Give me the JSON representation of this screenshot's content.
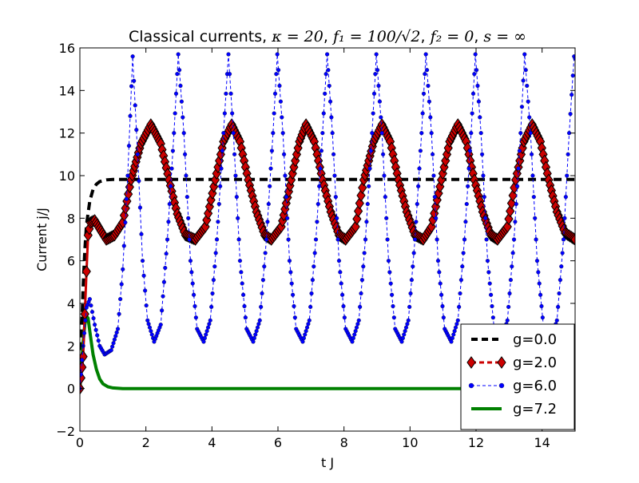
{
  "chart_data": {
    "type": "line",
    "title": {
      "prefix": "Classical currents, ",
      "kappa": "κ = 20",
      "f1": "f₁ = 100/√2",
      "f2": "f₂ = 0",
      "s": "s = ∞",
      "sep": ", "
    },
    "xlabel": "t J",
    "ylabel": "Current j/J",
    "xlim": [
      0,
      15
    ],
    "ylim": [
      -2,
      16
    ],
    "xticks": [
      0,
      2,
      4,
      6,
      8,
      10,
      12,
      14
    ],
    "yticks": [
      -2,
      0,
      2,
      4,
      6,
      8,
      10,
      12,
      14,
      16
    ],
    "grid": false,
    "legend_position": "lower-right",
    "series": [
      {
        "name": "g=0.0",
        "color": "#000000",
        "style": "dashed",
        "points": [
          [
            0,
            0
          ],
          [
            0.05,
            2.6
          ],
          [
            0.1,
            4.8
          ],
          [
            0.15,
            6.5
          ],
          [
            0.2,
            7.7
          ],
          [
            0.3,
            8.8
          ],
          [
            0.4,
            9.35
          ],
          [
            0.5,
            9.6
          ],
          [
            0.6,
            9.72
          ],
          [
            0.8,
            9.8
          ],
          [
            1.0,
            9.82
          ],
          [
            15,
            9.82
          ]
        ]
      },
      {
        "name": "g=2.0",
        "color": "#cc0000",
        "style": "diamonds",
        "points": [
          [
            0,
            0
          ],
          [
            0.1,
            1.5
          ],
          [
            0.15,
            3.5
          ],
          [
            0.2,
            5.5
          ],
          [
            0.25,
            7.2
          ],
          [
            0.32,
            7.8
          ],
          [
            0.45,
            7.9
          ],
          [
            0.6,
            7.5
          ],
          [
            0.8,
            7.0
          ],
          [
            1.05,
            7.2
          ],
          [
            1.3,
            7.8
          ],
          [
            1.55,
            9.8
          ],
          [
            1.85,
            11.5
          ],
          [
            2.15,
            12.4
          ],
          [
            2.45,
            11.5
          ],
          [
            2.7,
            9.8
          ],
          [
            2.95,
            8.2
          ],
          [
            3.2,
            7.2
          ],
          [
            3.5,
            7.0
          ],
          [
            3.8,
            7.6
          ],
          [
            4.1,
            9.8
          ],
          [
            4.35,
            11.6
          ],
          [
            4.6,
            12.4
          ],
          [
            4.85,
            11.6
          ],
          [
            5.1,
            9.8
          ],
          [
            5.35,
            8.3
          ],
          [
            5.6,
            7.2
          ],
          [
            5.8,
            7.0
          ],
          [
            6.1,
            7.6
          ],
          [
            6.4,
            9.8
          ],
          [
            6.65,
            11.6
          ],
          [
            6.85,
            12.4
          ],
          [
            7.1,
            11.6
          ],
          [
            7.35,
            9.8
          ],
          [
            7.6,
            8.3
          ],
          [
            7.85,
            7.2
          ],
          [
            8.05,
            7.0
          ],
          [
            8.35,
            7.6
          ],
          [
            8.6,
            9.8
          ],
          [
            8.9,
            11.6
          ],
          [
            9.15,
            12.4
          ],
          [
            9.4,
            11.6
          ],
          [
            9.65,
            9.8
          ],
          [
            9.9,
            8.3
          ],
          [
            10.15,
            7.2
          ],
          [
            10.4,
            7.0
          ],
          [
            10.65,
            7.6
          ],
          [
            10.95,
            9.8
          ],
          [
            11.2,
            11.6
          ],
          [
            11.45,
            12.4
          ],
          [
            11.7,
            11.6
          ],
          [
            11.95,
            9.8
          ],
          [
            12.2,
            8.3
          ],
          [
            12.45,
            7.2
          ],
          [
            12.65,
            7.0
          ],
          [
            12.95,
            7.6
          ],
          [
            13.2,
            9.8
          ],
          [
            13.45,
            11.6
          ],
          [
            13.7,
            12.4
          ],
          [
            13.95,
            11.6
          ],
          [
            14.2,
            9.8
          ],
          [
            14.45,
            8.3
          ],
          [
            14.7,
            7.3
          ],
          [
            15,
            7.0
          ]
        ]
      },
      {
        "name": "g=6.0",
        "color": "#0000ff",
        "style": "dots",
        "points": [
          [
            0,
            0
          ],
          [
            0.1,
            2.0
          ],
          [
            0.2,
            3.8
          ],
          [
            0.3,
            4.2
          ],
          [
            0.45,
            3.0
          ],
          [
            0.6,
            2.0
          ],
          [
            0.75,
            1.6
          ],
          [
            0.95,
            1.8
          ],
          [
            1.15,
            2.8
          ],
          [
            1.3,
            5.6
          ],
          [
            1.45,
            10.0
          ],
          [
            1.6,
            15.6
          ],
          [
            1.75,
            11.0
          ],
          [
            1.9,
            6.0
          ],
          [
            2.05,
            3.2
          ],
          [
            2.25,
            2.2
          ],
          [
            2.45,
            3.0
          ],
          [
            2.65,
            7.0
          ],
          [
            2.85,
            12.0
          ],
          [
            2.98,
            15.7
          ],
          [
            3.15,
            12.0
          ],
          [
            3.35,
            6.0
          ],
          [
            3.55,
            2.8
          ],
          [
            3.75,
            2.2
          ],
          [
            3.95,
            3.2
          ],
          [
            4.15,
            7.0
          ],
          [
            4.35,
            12.0
          ],
          [
            4.5,
            15.7
          ],
          [
            4.65,
            12.0
          ],
          [
            4.85,
            6.0
          ],
          [
            5.05,
            2.8
          ],
          [
            5.25,
            2.2
          ],
          [
            5.45,
            3.2
          ],
          [
            5.65,
            7.0
          ],
          [
            5.85,
            12.0
          ],
          [
            5.98,
            15.7
          ],
          [
            6.15,
            12.0
          ],
          [
            6.35,
            6.0
          ],
          [
            6.55,
            2.8
          ],
          [
            6.75,
            2.2
          ],
          [
            6.95,
            3.2
          ],
          [
            7.15,
            7.0
          ],
          [
            7.35,
            12.0
          ],
          [
            7.49,
            15.7
          ],
          [
            7.65,
            12.0
          ],
          [
            7.85,
            6.0
          ],
          [
            8.05,
            2.8
          ],
          [
            8.25,
            2.2
          ],
          [
            8.45,
            3.2
          ],
          [
            8.65,
            7.0
          ],
          [
            8.85,
            12.0
          ],
          [
            8.98,
            15.7
          ],
          [
            9.15,
            12.0
          ],
          [
            9.35,
            6.0
          ],
          [
            9.55,
            2.8
          ],
          [
            9.75,
            2.2
          ],
          [
            9.95,
            3.2
          ],
          [
            10.15,
            7.0
          ],
          [
            10.35,
            12.0
          ],
          [
            10.48,
            15.7
          ],
          [
            10.65,
            12.0
          ],
          [
            10.85,
            6.0
          ],
          [
            11.05,
            2.8
          ],
          [
            11.25,
            2.2
          ],
          [
            11.45,
            3.2
          ],
          [
            11.65,
            7.0
          ],
          [
            11.85,
            12.0
          ],
          [
            11.98,
            15.7
          ],
          [
            12.15,
            12.0
          ],
          [
            12.35,
            6.0
          ],
          [
            12.55,
            2.8
          ],
          [
            12.75,
            2.2
          ],
          [
            12.95,
            3.2
          ],
          [
            13.15,
            7.0
          ],
          [
            13.35,
            12.0
          ],
          [
            13.47,
            15.7
          ],
          [
            13.65,
            12.0
          ],
          [
            13.85,
            6.0
          ],
          [
            14.05,
            2.8
          ],
          [
            14.25,
            2.2
          ],
          [
            14.45,
            3.2
          ],
          [
            14.65,
            7.0
          ],
          [
            14.82,
            12.0
          ],
          [
            14.97,
            15.6
          ],
          [
            15,
            15.5
          ]
        ]
      },
      {
        "name": "g=7.2",
        "color": "#008000",
        "style": "solid",
        "points": [
          [
            0,
            0
          ],
          [
            0.05,
            1.1
          ],
          [
            0.1,
            2.2
          ],
          [
            0.15,
            3.0
          ],
          [
            0.2,
            3.4
          ],
          [
            0.25,
            3.3
          ],
          [
            0.3,
            2.7
          ],
          [
            0.4,
            1.6
          ],
          [
            0.5,
            0.9
          ],
          [
            0.6,
            0.45
          ],
          [
            0.7,
            0.22
          ],
          [
            0.85,
            0.08
          ],
          [
            1.0,
            0.03
          ],
          [
            1.3,
            0.0
          ],
          [
            15,
            0.0
          ]
        ]
      }
    ]
  }
}
